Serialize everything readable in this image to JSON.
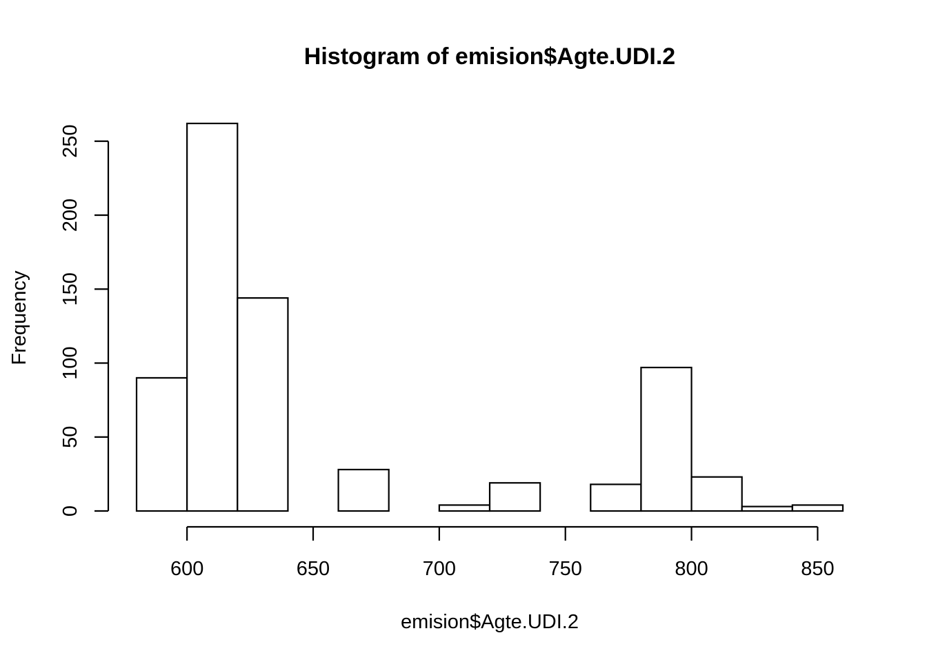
{
  "chart_data": {
    "type": "bar",
    "title": "Histogram of emision$Agte.UDI.2",
    "xlabel": "emision$Agte.UDI.2",
    "ylabel": "Frequency",
    "bin_width": 20,
    "bins": [
      {
        "start": 580,
        "end": 600,
        "count": 90
      },
      {
        "start": 600,
        "end": 620,
        "count": 262
      },
      {
        "start": 620,
        "end": 640,
        "count": 144
      },
      {
        "start": 640,
        "end": 660,
        "count": 0
      },
      {
        "start": 660,
        "end": 680,
        "count": 28
      },
      {
        "start": 680,
        "end": 700,
        "count": 0
      },
      {
        "start": 700,
        "end": 720,
        "count": 4
      },
      {
        "start": 720,
        "end": 740,
        "count": 19
      },
      {
        "start": 740,
        "end": 760,
        "count": 0
      },
      {
        "start": 760,
        "end": 780,
        "count": 18
      },
      {
        "start": 780,
        "end": 800,
        "count": 97
      },
      {
        "start": 800,
        "end": 820,
        "count": 23
      },
      {
        "start": 820,
        "end": 840,
        "count": 3
      },
      {
        "start": 840,
        "end": 860,
        "count": 4
      }
    ],
    "xlim": [
      580,
      860
    ],
    "ylim": [
      0,
      262
    ],
    "x_ticks": [
      600,
      650,
      700,
      750,
      800,
      850
    ],
    "y_ticks": [
      0,
      50,
      100,
      150,
      200,
      250
    ],
    "grid": false,
    "legend": "none",
    "bar_fill": "#ffffff",
    "bar_stroke": "#000000"
  }
}
